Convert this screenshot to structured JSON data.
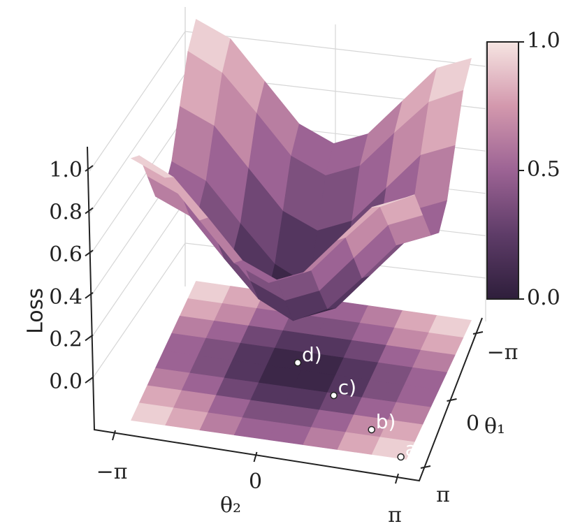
{
  "chart_data": {
    "type": "surface",
    "xlabel": "θ₂",
    "ylabel": "θ₁",
    "zlabel": "Loss",
    "x": [
      -3.1416,
      -2.3562,
      -1.5708,
      -0.7854,
      0,
      0.7854,
      1.5708,
      2.3562,
      3.1416
    ],
    "y": [
      -3.1416,
      -2.3562,
      -1.5708,
      -0.7854,
      0,
      0.7854,
      1.5708,
      2.3562,
      3.1416
    ],
    "z": [
      [
        1.0,
        0.93,
        0.75,
        0.57,
        0.5,
        0.57,
        0.75,
        0.93,
        1.0
      ],
      [
        0.93,
        0.85,
        0.68,
        0.5,
        0.43,
        0.5,
        0.68,
        0.85,
        0.93
      ],
      [
        0.75,
        0.68,
        0.5,
        0.32,
        0.25,
        0.32,
        0.5,
        0.68,
        0.75
      ],
      [
        0.57,
        0.5,
        0.32,
        0.15,
        0.07,
        0.15,
        0.32,
        0.5,
        0.57
      ],
      [
        0.5,
        0.43,
        0.25,
        0.07,
        0,
        0.07,
        0.25,
        0.43,
        0.5
      ],
      [
        0.57,
        0.5,
        0.32,
        0.15,
        0.07,
        0.15,
        0.32,
        0.5,
        0.57
      ],
      [
        0.75,
        0.68,
        0.5,
        0.32,
        0.25,
        0.32,
        0.5,
        0.68,
        0.75
      ],
      [
        0.93,
        0.85,
        0.68,
        0.5,
        0.43,
        0.5,
        0.68,
        0.85,
        0.93
      ],
      [
        1.0,
        0.93,
        0.75,
        0.57,
        0.5,
        0.57,
        0.75,
        0.93,
        1.0
      ]
    ],
    "xlim": [
      -3.1416,
      3.1416
    ],
    "ylim": [
      -3.1416,
      3.1416
    ],
    "zlim": [
      -0.25,
      1.1
    ],
    "xticks": [
      {
        "value": -3.1416,
        "label": "−π"
      },
      0,
      {
        "value": 3.1416,
        "label": "π"
      }
    ],
    "yticks": [
      {
        "value": -3.1416,
        "label": "−π"
      },
      0,
      {
        "value": 3.1416,
        "label": "π"
      }
    ],
    "zticks": [
      {
        "value": 0,
        "label": "0.0"
      },
      0.2,
      0.4,
      0.6,
      0.8,
      {
        "value": 1,
        "label": "1.0"
      }
    ],
    "clim": [
      0,
      1
    ],
    "cbar_ticks": [
      {
        "value": 0,
        "label": "0.0"
      },
      0.5,
      {
        "value": 1,
        "label": "1.0"
      }
    ],
    "colormap": [
      "#2e1e3b",
      "#5e3c68",
      "#9c6394",
      "#d398ad",
      "#f6e5e2"
    ],
    "grid": true,
    "points": {
      "labels": [
        "a)",
        "b)",
        "c)",
        "d)"
      ],
      "x": [
        3.0,
        2.1,
        0.95,
        -0.15
      ],
      "y": [
        3.07,
        2.09,
        0.87,
        -0.3
      ]
    }
  }
}
